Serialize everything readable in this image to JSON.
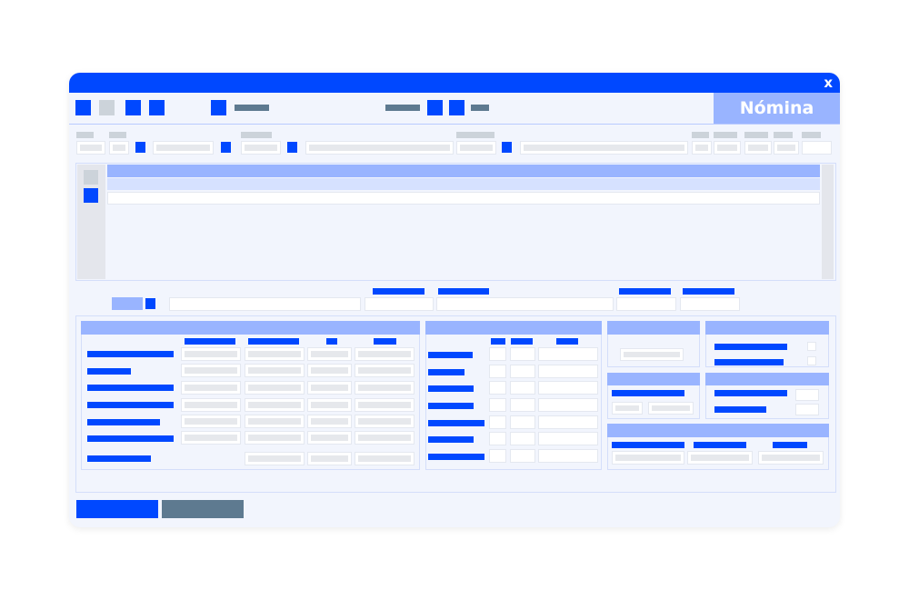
{
  "window": {
    "title": "Nómina",
    "close_label": "x"
  },
  "colors": {
    "primary": "#0048ff",
    "accent_light": "#99b4ff",
    "secondary": "#5e7a90",
    "background": "#f2f5fd"
  }
}
